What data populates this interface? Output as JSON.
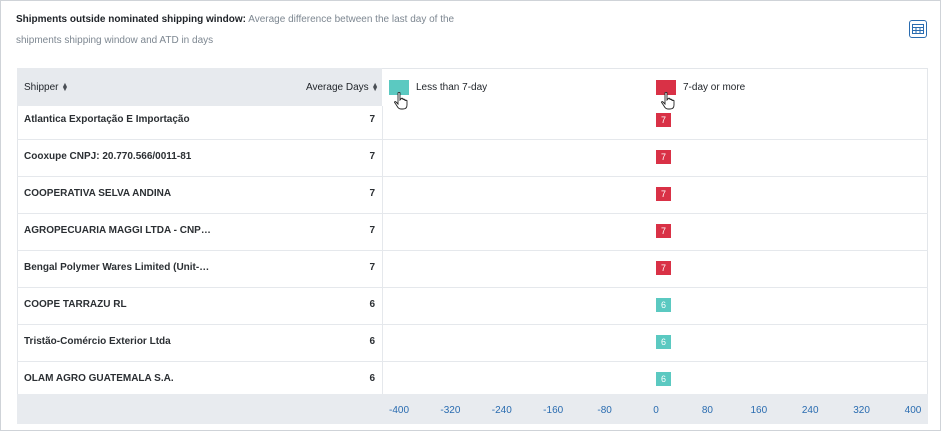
{
  "header": {
    "title_bold": "Shipments outside nominated shipping window:",
    "title_rest": " Average difference between the last day of the",
    "title_line2": "shipments shipping window and ATD in days"
  },
  "columns": {
    "shipper": "Shipper",
    "average_days": "Average Days"
  },
  "icons": {
    "table_view": "table-grid-icon",
    "sort": "sort-icon",
    "pointer": "hand-pointer-icon"
  },
  "colors": {
    "less_than_7": "#5bc9c1",
    "seven_or_more": "#d93146",
    "axis_text": "#2a6cb0"
  },
  "chart_data": {
    "type": "bar",
    "orientation": "horizontal",
    "categories": [
      "Atlantica Exportação E Importação",
      "Cooxupe CNPJ: 20.770.566/0011-81",
      "COOPERATIVA SELVA ANDINA",
      "AGROPECUARIA MAGGI LTDA - CNP…",
      "Bengal Polymer Wares Limited (Unit-…",
      "COOPE TARRAZU RL",
      "Tristão-Comércio Exterior Ltda",
      "OLAM AGRO GUATEMALA S.A."
    ],
    "values": [
      7,
      7,
      7,
      7,
      7,
      6,
      6,
      6
    ],
    "value_labels": [
      "7",
      "7",
      "7",
      "7",
      "7",
      "6",
      "6",
      "6"
    ],
    "groups": [
      "7-day or more",
      "7-day or more",
      "7-day or more",
      "7-day or more",
      "7-day or more",
      "Less than 7-day",
      "Less than 7-day",
      "Less than 7-day"
    ],
    "legend": [
      {
        "name": "Less than 7-day",
        "color": "#5bc9c1"
      },
      {
        "name": "7-day or more",
        "color": "#d93146"
      }
    ],
    "xlim": [
      -400,
      400
    ],
    "xticks": [
      "-400",
      "-320",
      "-240",
      "-160",
      "-80",
      "0",
      "80",
      "160",
      "240",
      "320",
      "400"
    ],
    "legend_position": "top",
    "grid": false
  }
}
